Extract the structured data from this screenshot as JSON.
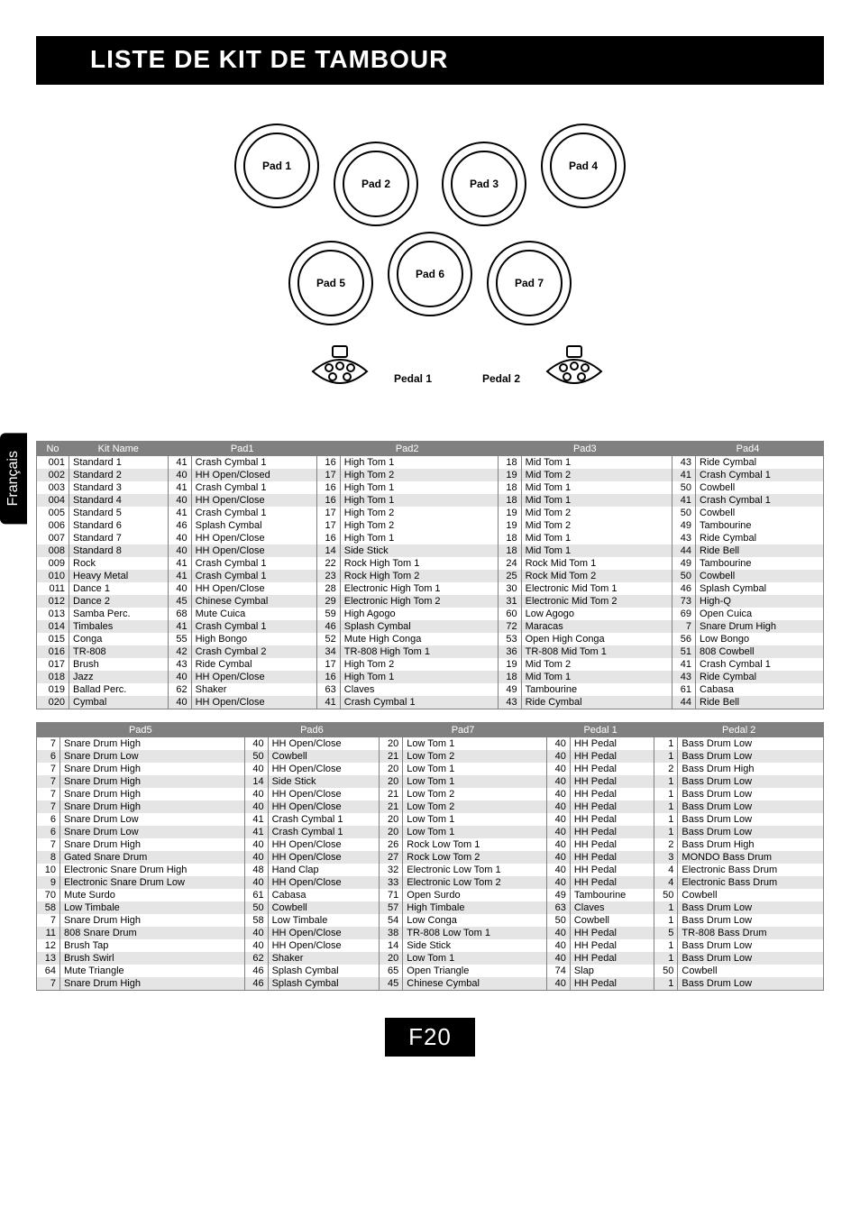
{
  "title": "LISTE DE KIT DE TAMBOUR",
  "langTab": "Français",
  "pageNumber": "F20",
  "padLabels": {
    "p1": "Pad 1",
    "p2": "Pad 2",
    "p3": "Pad 3",
    "p4": "Pad 4",
    "p5": "Pad 5",
    "p6": "Pad 6",
    "p7": "Pad 7",
    "pedal1": "Pedal 1",
    "pedal2": "Pedal 2"
  },
  "headers1": [
    "No",
    "Kit Name",
    "",
    "Pad1",
    "",
    "Pad2",
    "",
    "Pad3",
    "",
    "Pad4"
  ],
  "headers2": [
    "",
    "Pad5",
    "",
    "Pad6",
    "",
    "Pad7",
    "",
    "Pedal 1",
    "",
    "Pedal 2"
  ],
  "rows1": [
    [
      "001",
      "Standard 1",
      "41",
      "Crash Cymbal 1",
      "16",
      "High Tom 1",
      "18",
      "Mid Tom 1",
      "43",
      "Ride Cymbal"
    ],
    [
      "002",
      "Standard 2",
      "40",
      "HH Open/Closed",
      "17",
      "High Tom 2",
      "19",
      "Mid Tom 2",
      "41",
      "Crash Cymbal 1"
    ],
    [
      "003",
      "Standard 3",
      "41",
      "Crash Cymbal 1",
      "16",
      "High Tom 1",
      "18",
      "Mid Tom 1",
      "50",
      "Cowbell"
    ],
    [
      "004",
      "Standard 4",
      "40",
      "HH Open/Close",
      "16",
      "High Tom 1",
      "18",
      "Mid Tom 1",
      "41",
      "Crash Cymbal 1"
    ],
    [
      "005",
      "Standard 5",
      "41",
      "Crash Cymbal 1",
      "17",
      "High Tom 2",
      "19",
      "Mid Tom 2",
      "50",
      "Cowbell"
    ],
    [
      "006",
      "Standard 6",
      "46",
      "Splash Cymbal",
      "17",
      "High Tom 2",
      "19",
      "Mid Tom 2",
      "49",
      "Tambourine"
    ],
    [
      "007",
      "Standard 7",
      "40",
      "HH Open/Close",
      "16",
      "High Tom 1",
      "18",
      "Mid Tom 1",
      "43",
      "Ride Cymbal"
    ],
    [
      "008",
      "Standard 8",
      "40",
      "HH Open/Close",
      "14",
      "Side Stick",
      "18",
      "Mid Tom 1",
      "44",
      "Ride Bell"
    ],
    [
      "009",
      "Rock",
      "41",
      "Crash Cymbal 1",
      "22",
      "Rock High Tom 1",
      "24",
      "Rock Mid Tom 1",
      "49",
      "Tambourine"
    ],
    [
      "010",
      "Heavy Metal",
      "41",
      "Crash Cymbal 1",
      "23",
      "Rock High Tom 2",
      "25",
      "Rock Mid Tom 2",
      "50",
      "Cowbell"
    ],
    [
      "011",
      "Dance 1",
      "40",
      "HH Open/Close",
      "28",
      "Electronic High Tom 1",
      "30",
      "Electronic Mid Tom 1",
      "46",
      "Splash Cymbal"
    ],
    [
      "012",
      "Dance 2",
      "45",
      "Chinese Cymbal",
      "29",
      "Electronic High Tom 2",
      "31",
      "Electronic Mid Tom 2",
      "73",
      "High-Q"
    ],
    [
      "013",
      "Samba Perc.",
      "68",
      "Mute Cuica",
      "59",
      "High Agogo",
      "60",
      "Low Agogo",
      "69",
      "Open Cuica"
    ],
    [
      "014",
      "Timbales",
      "41",
      "Crash Cymbal 1",
      "46",
      "Splash Cymbal",
      "72",
      "Maracas",
      "7",
      "Snare Drum High"
    ],
    [
      "015",
      "Conga",
      "55",
      "High Bongo",
      "52",
      "Mute High Conga",
      "53",
      "Open High Conga",
      "56",
      "Low Bongo"
    ],
    [
      "016",
      "TR-808",
      "42",
      "Crash Cymbal 2",
      "34",
      "TR-808 High Tom 1",
      "36",
      "TR-808 Mid Tom 1",
      "51",
      "808 Cowbell"
    ],
    [
      "017",
      "Brush",
      "43",
      "Ride Cymbal",
      "17",
      "High Tom 2",
      "19",
      "Mid Tom 2",
      "41",
      "Crash Cymbal 1"
    ],
    [
      "018",
      "Jazz",
      "40",
      "HH Open/Close",
      "16",
      "High Tom 1",
      "18",
      "Mid Tom 1",
      "43",
      "Ride Cymbal"
    ],
    [
      "019",
      "Ballad Perc.",
      "62",
      "Shaker",
      "63",
      "Claves",
      "49",
      "Tambourine",
      "61",
      "Cabasa"
    ],
    [
      "020",
      "Cymbal",
      "40",
      "HH Open/Close",
      "41",
      "Crash Cymbal 1",
      "43",
      "Ride Cymbal",
      "44",
      "Ride Bell"
    ]
  ],
  "rows2": [
    [
      "7",
      "Snare Drum High",
      "40",
      "HH Open/Close",
      "20",
      "Low Tom 1",
      "40",
      "HH Pedal",
      "1",
      "Bass Drum Low"
    ],
    [
      "6",
      "Snare Drum Low",
      "50",
      "Cowbell",
      "21",
      "Low Tom 2",
      "40",
      "HH Pedal",
      "1",
      "Bass Drum Low"
    ],
    [
      "7",
      "Snare Drum High",
      "40",
      "HH Open/Close",
      "20",
      "Low Tom 1",
      "40",
      "HH Pedal",
      "2",
      "Bass Drum High"
    ],
    [
      "7",
      "Snare Drum High",
      "14",
      "Side Stick",
      "20",
      "Low Tom 1",
      "40",
      "HH Pedal",
      "1",
      "Bass Drum Low"
    ],
    [
      "7",
      "Snare Drum High",
      "40",
      "HH Open/Close",
      "21",
      "Low Tom 2",
      "40",
      "HH Pedal",
      "1",
      "Bass Drum Low"
    ],
    [
      "7",
      "Snare Drum High",
      "40",
      "HH Open/Close",
      "21",
      "Low Tom 2",
      "40",
      "HH Pedal",
      "1",
      "Bass Drum Low"
    ],
    [
      "6",
      "Snare Drum Low",
      "41",
      "Crash Cymbal 1",
      "20",
      "Low Tom 1",
      "40",
      "HH Pedal",
      "1",
      "Bass Drum Low"
    ],
    [
      "6",
      "Snare Drum Low",
      "41",
      "Crash Cymbal 1",
      "20",
      "Low Tom 1",
      "40",
      "HH Pedal",
      "1",
      "Bass Drum Low"
    ],
    [
      "7",
      "Snare Drum High",
      "40",
      "HH Open/Close",
      "26",
      "Rock Low Tom 1",
      "40",
      "HH Pedal",
      "2",
      "Bass Drum High"
    ],
    [
      "8",
      "Gated Snare Drum",
      "40",
      "HH Open/Close",
      "27",
      "Rock Low Tom 2",
      "40",
      "HH Pedal",
      "3",
      "MONDO Bass Drum"
    ],
    [
      "10",
      "Electronic Snare Drum High",
      "48",
      "Hand Clap",
      "32",
      "Electronic Low Tom 1",
      "40",
      "HH Pedal",
      "4",
      "Electronic Bass Drum"
    ],
    [
      "9",
      "Electronic Snare Drum Low",
      "40",
      "HH Open/Close",
      "33",
      "Electronic Low Tom 2",
      "40",
      "HH Pedal",
      "4",
      "Electronic Bass Drum"
    ],
    [
      "70",
      "Mute Surdo",
      "61",
      "Cabasa",
      "71",
      "Open Surdo",
      "49",
      "Tambourine",
      "50",
      "Cowbell"
    ],
    [
      "58",
      "Low Timbale",
      "50",
      "Cowbell",
      "57",
      "High Timbale",
      "63",
      "Claves",
      "1",
      "Bass Drum Low"
    ],
    [
      "7",
      "Snare Drum High",
      "58",
      "Low Timbale",
      "54",
      "Low Conga",
      "50",
      "Cowbell",
      "1",
      "Bass Drum Low"
    ],
    [
      "11",
      "808 Snare Drum",
      "40",
      "HH Open/Close",
      "38",
      "TR-808 Low Tom 1",
      "40",
      "HH Pedal",
      "5",
      "TR-808 Bass Drum"
    ],
    [
      "12",
      "Brush Tap",
      "40",
      "HH Open/Close",
      "14",
      "Side Stick",
      "40",
      "HH Pedal",
      "1",
      "Bass Drum Low"
    ],
    [
      "13",
      "Brush Swirl",
      "62",
      "Shaker",
      "20",
      "Low Tom 1",
      "40",
      "HH Pedal",
      "1",
      "Bass Drum Low"
    ],
    [
      "64",
      "Mute Triangle",
      "46",
      "Splash Cymbal",
      "65",
      "Open Triangle",
      "74",
      "Slap",
      "50",
      "Cowbell"
    ],
    [
      "7",
      "Snare Drum High",
      "46",
      "Splash Cymbal",
      "45",
      "Chinese Cymbal",
      "40",
      "HH Pedal",
      "1",
      "Bass Drum Low"
    ]
  ],
  "shade1": [
    1,
    3,
    7,
    9,
    11,
    13,
    15,
    17,
    19
  ],
  "shade2": [
    1,
    3,
    5,
    7,
    9,
    11,
    13,
    15,
    17,
    19
  ],
  "style": {
    "headerBg": "#808080",
    "headerColor": "#ffffff",
    "shadeBg": "#e5e5e5",
    "fontSize": 11,
    "titleFontSize": 28,
    "pageW": 954
  }
}
